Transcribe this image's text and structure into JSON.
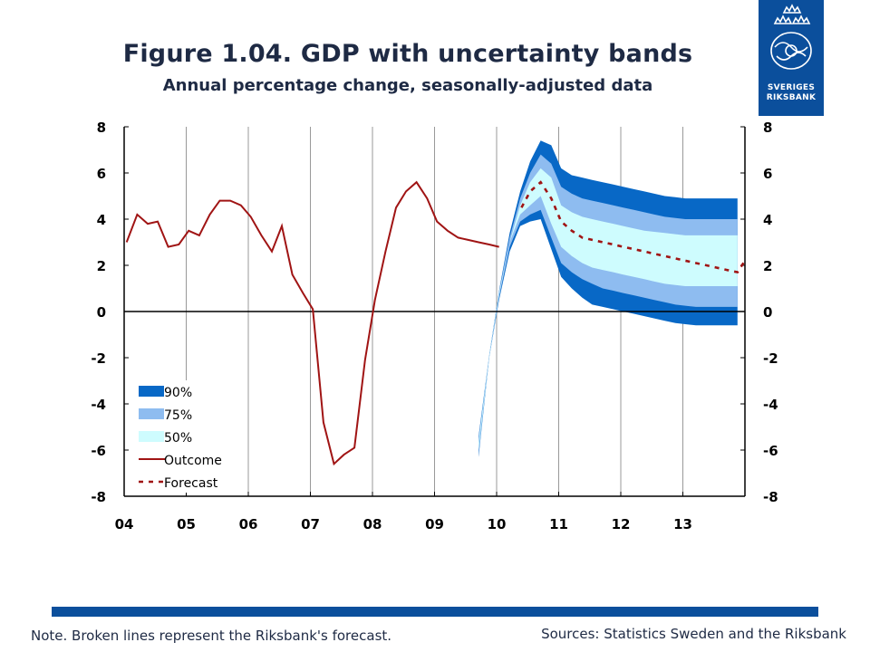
{
  "title": "Figure 1.04. GDP with uncertainty bands",
  "subtitle": "Annual percentage change, seasonally-adjusted data",
  "logo": {
    "text": "SVERIGES\nRIKSBANK",
    "icon": "riksbank-crown-emblem-icon"
  },
  "note": "Note. Broken lines represent the Riksbank's forecast.",
  "sources": "Sources: Statistics Sweden and the Riksbank",
  "colors": {
    "band90": "#0868c6",
    "band75": "#8ebcf0",
    "band50": "#cefcfe",
    "outcome": "#a01414",
    "forecast": "#a01414",
    "footer": "#0b4f9c",
    "grid": "#999999"
  },
  "chart_data": {
    "type": "line",
    "title": "Figure 1.04. GDP with uncertainty bands",
    "subtitle": "Annual percentage change, seasonally-adjusted data",
    "ylim": [
      -8,
      8
    ],
    "yticks": [
      8,
      6,
      4,
      2,
      0,
      -2,
      -4,
      -6,
      -8
    ],
    "xlim": [
      2004.0,
      2014.0
    ],
    "xticks": [
      {
        "value": 2004,
        "label": "04"
      },
      {
        "value": 2005,
        "label": "05"
      },
      {
        "value": 2006,
        "label": "06"
      },
      {
        "value": 2007,
        "label": "07"
      },
      {
        "value": 2008,
        "label": "08"
      },
      {
        "value": 2009,
        "label": "09"
      },
      {
        "value": 2010,
        "label": "10"
      },
      {
        "value": 2011,
        "label": "11"
      },
      {
        "value": 2012,
        "label": "12"
      },
      {
        "value": 2013,
        "label": "13"
      }
    ],
    "grid": "vertical",
    "legend": {
      "position": "lower-left",
      "entries": [
        {
          "label": "90%",
          "key": "band90"
        },
        {
          "label": "75%",
          "key": "band75"
        },
        {
          "label": "50%",
          "key": "band50"
        },
        {
          "label": "Outcome",
          "key": "outcome"
        },
        {
          "label": "Forecast",
          "key": "forecast"
        }
      ]
    },
    "outcome": {
      "name": "Outcome",
      "x": [
        2004.04,
        2004.21,
        2004.38,
        2004.54,
        2004.71,
        2004.88,
        2005.04,
        2005.21,
        2005.38,
        2005.54,
        2005.71,
        2005.88,
        2006.04,
        2006.21,
        2006.38,
        2006.54,
        2006.71,
        2006.88,
        2007.04,
        2007.21,
        2007.38,
        2007.54,
        2007.71,
        2007.88,
        2008.04,
        2008.21,
        2008.38,
        2008.54,
        2008.71,
        2008.88,
        2009.04,
        2009.21,
        2009.38,
        2009.54,
        2009.71,
        2009.88,
        2010.04
      ],
      "y": [
        3.0,
        4.2,
        3.8,
        3.9,
        2.8,
        2.9,
        3.5,
        3.3,
        4.2,
        4.8,
        4.8,
        4.6,
        4.1,
        3.3,
        2.6,
        3.7,
        1.6,
        0.8,
        0.1,
        -4.8,
        -6.6,
        -6.2,
        -5.9,
        -2.1,
        0.5,
        2.6,
        4.5,
        5.2,
        5.6,
        4.9,
        3.9,
        3.5,
        3.2,
        3.1,
        3.0,
        2.9,
        2.8
      ]
    },
    "forecast": {
      "name": "Forecast",
      "x": [
        2010.4,
        2010.54,
        2010.71,
        2010.88,
        2011.04,
        2011.21,
        2011.38,
        2011.54,
        2011.71,
        2011.88,
        2012.04,
        2012.21,
        2012.38,
        2012.54,
        2012.71,
        2012.88,
        2013.04,
        2013.21,
        2013.38,
        2013.54,
        2013.71,
        2013.88,
        2014.0
      ],
      "y": [
        4.5,
        5.2,
        5.6,
        4.9,
        3.9,
        3.5,
        3.2,
        3.1,
        3.0,
        2.9,
        2.8,
        2.7,
        2.6,
        2.5,
        2.4,
        2.3,
        2.2,
        2.1,
        2.0,
        1.9,
        1.8,
        1.7,
        2.2
      ]
    },
    "bands": {
      "x": [
        2009.71,
        2009.88,
        2010.04,
        2010.21,
        2010.38,
        2010.54,
        2010.71,
        2010.88,
        2011.04,
        2011.21,
        2011.38,
        2011.54,
        2011.71,
        2011.88,
        2012.04,
        2012.21,
        2012.38,
        2012.54,
        2012.71,
        2012.88,
        2013.04,
        2013.21,
        2013.38,
        2013.54,
        2013.71,
        2013.88
      ],
      "lower90": [
        -6.3,
        -2.0,
        0.5,
        2.6,
        3.7,
        3.9,
        4.0,
        2.7,
        1.5,
        1.0,
        0.6,
        0.3,
        0.2,
        0.1,
        0.0,
        -0.1,
        -0.2,
        -0.3,
        -0.4,
        -0.5,
        -0.55,
        -0.6,
        -0.6,
        -0.6,
        -0.6,
        -0.6
      ],
      "upper90": [
        -5.4,
        -1.9,
        0.9,
        3.4,
        5.2,
        6.5,
        7.4,
        7.2,
        6.2,
        5.9,
        5.8,
        5.7,
        5.6,
        5.5,
        5.4,
        5.3,
        5.2,
        5.1,
        5.0,
        4.95,
        4.9,
        4.9,
        4.9,
        4.9,
        4.9,
        4.9
      ],
      "lower75": [
        -6.2,
        -2.0,
        0.6,
        2.8,
        3.9,
        4.2,
        4.4,
        3.2,
        2.1,
        1.7,
        1.4,
        1.2,
        1.0,
        0.9,
        0.8,
        0.7,
        0.6,
        0.5,
        0.4,
        0.3,
        0.25,
        0.2,
        0.2,
        0.2,
        0.2,
        0.2
      ],
      "upper75": [
        -5.5,
        -1.95,
        0.85,
        3.2,
        4.9,
        6.0,
        6.8,
        6.4,
        5.4,
        5.1,
        4.9,
        4.8,
        4.7,
        4.6,
        4.5,
        4.4,
        4.3,
        4.2,
        4.1,
        4.05,
        4.0,
        4.0,
        4.0,
        4.0,
        4.0,
        4.0
      ],
      "lower50": [
        -6.0,
        -1.98,
        0.7,
        3.0,
        4.2,
        4.6,
        5.0,
        3.8,
        2.8,
        2.4,
        2.1,
        1.9,
        1.8,
        1.7,
        1.6,
        1.5,
        1.4,
        1.3,
        1.2,
        1.15,
        1.1,
        1.1,
        1.1,
        1.1,
        1.1,
        1.1
      ],
      "upper50": [
        -5.7,
        -1.92,
        0.8,
        3.0,
        4.6,
        5.6,
        6.2,
        5.8,
        4.6,
        4.3,
        4.1,
        4.0,
        3.9,
        3.8,
        3.7,
        3.6,
        3.5,
        3.45,
        3.4,
        3.35,
        3.3,
        3.3,
        3.3,
        3.3,
        3.3,
        3.3
      ]
    }
  }
}
